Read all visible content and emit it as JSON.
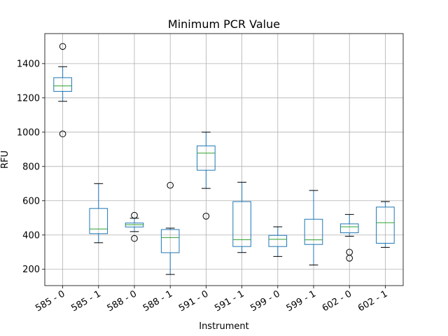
{
  "chart_data": {
    "type": "box",
    "title": "Minimum PCR Value",
    "xlabel": "Instrument",
    "ylabel": "RFU",
    "ylim": [
      105,
      1575
    ],
    "yticks": [
      200,
      400,
      600,
      800,
      1000,
      1200,
      1400
    ],
    "grid": true,
    "categories": [
      "585 - 0",
      "585 - 1",
      "588 - 0",
      "588 - 1",
      "591 - 0",
      "591 - 1",
      "599 - 0",
      "599 - 1",
      "602 - 0",
      "602 - 1"
    ],
    "boxes": [
      {
        "whislo": 1180,
        "q1": 1238,
        "med": 1270,
        "q3": 1318,
        "whishi": 1382,
        "fliers": [
          1500,
          990
        ]
      },
      {
        "whislo": 355,
        "q1": 408,
        "med": 435,
        "q3": 555,
        "whishi": 700,
        "fliers": []
      },
      {
        "whislo": 420,
        "q1": 447,
        "med": 460,
        "q3": 470,
        "whishi": 498,
        "fliers": [
          515,
          380
        ]
      },
      {
        "whislo": 170,
        "q1": 297,
        "med": 385,
        "q3": 432,
        "whishi": 440,
        "fliers": [
          690
        ]
      },
      {
        "whislo": 672,
        "q1": 778,
        "med": 878,
        "q3": 920,
        "whishi": 1000,
        "fliers": [
          510
        ]
      },
      {
        "whislo": 298,
        "q1": 333,
        "med": 373,
        "q3": 595,
        "whishi": 708,
        "fliers": []
      },
      {
        "whislo": 275,
        "q1": 333,
        "med": 375,
        "q3": 398,
        "whishi": 448,
        "fliers": []
      },
      {
        "whislo": 225,
        "q1": 345,
        "med": 372,
        "q3": 492,
        "whishi": 660,
        "fliers": []
      },
      {
        "whislo": 393,
        "q1": 413,
        "med": 448,
        "q3": 465,
        "whishi": 520,
        "fliers": [
          300,
          265
        ]
      },
      {
        "whislo": 328,
        "q1": 352,
        "med": 472,
        "q3": 563,
        "whishi": 595,
        "fliers": []
      }
    ]
  }
}
